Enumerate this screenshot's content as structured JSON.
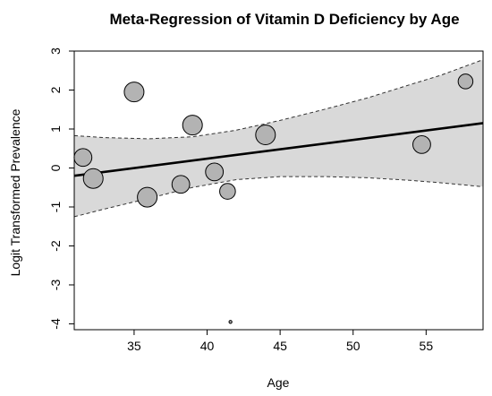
{
  "chart_data": {
    "type": "scatter",
    "title": "Meta-Regression of Vitamin D Deficiency by Age",
    "xlabel": "Age",
    "ylabel": "Logit Transformed Prevalence",
    "xlim": [
      30.9,
      58.9
    ],
    "ylim": [
      -4.15,
      3.0
    ],
    "xticks": [
      35,
      40,
      45,
      50,
      55
    ],
    "yticks": [
      -4,
      -3,
      -2,
      -1,
      0,
      1,
      2,
      3
    ],
    "points": [
      {
        "x": 31.5,
        "y": 0.27,
        "weight": 9
      },
      {
        "x": 32.2,
        "y": -0.27,
        "weight": 10
      },
      {
        "x": 35.0,
        "y": 1.95,
        "weight": 10
      },
      {
        "x": 35.9,
        "y": -0.75,
        "weight": 10
      },
      {
        "x": 38.2,
        "y": -0.42,
        "weight": 9
      },
      {
        "x": 39.0,
        "y": 1.1,
        "weight": 10
      },
      {
        "x": 40.5,
        "y": -0.1,
        "weight": 9
      },
      {
        "x": 41.4,
        "y": -0.6,
        "weight": 8
      },
      {
        "x": 41.6,
        "y": -3.95,
        "weight": 1.5
      },
      {
        "x": 44.0,
        "y": 0.85,
        "weight": 10
      },
      {
        "x": 54.7,
        "y": 0.6,
        "weight": 9
      },
      {
        "x": 57.7,
        "y": 2.22,
        "weight": 7.5
      }
    ],
    "regression_line": {
      "x": [
        30.9,
        58.9
      ],
      "y": [
        -0.2,
        1.15
      ]
    },
    "confidence_band": {
      "x": [
        30.9,
        33,
        36,
        39,
        42,
        45,
        48,
        51,
        54,
        56,
        58.9
      ],
      "upper": [
        0.83,
        0.78,
        0.75,
        0.8,
        0.97,
        1.22,
        1.5,
        1.8,
        2.15,
        2.38,
        2.78
      ],
      "lower": [
        -1.25,
        -1.05,
        -0.78,
        -0.5,
        -0.3,
        -0.22,
        -0.22,
        -0.25,
        -0.32,
        -0.38,
        -0.48
      ]
    },
    "grid": false,
    "legend": "none",
    "colors": {
      "band_fill": "#d9d9d9",
      "point_fill": "#b3b3b3",
      "point_stroke": "#000000",
      "line": "#000000"
    }
  }
}
